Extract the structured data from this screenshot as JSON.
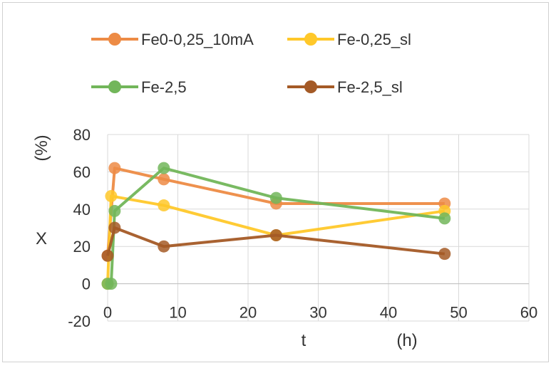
{
  "chart_data": {
    "type": "line",
    "xlabel": "t",
    "xunit": "(h)",
    "ylabel": "X",
    "yunit": "(%)",
    "xlim": [
      0,
      60
    ],
    "ylim": [
      -20,
      80
    ],
    "xticks": [
      0,
      10,
      20,
      30,
      40,
      50,
      60
    ],
    "yticks": [
      -20,
      0,
      20,
      40,
      60,
      80
    ],
    "grid": true,
    "legend_position": "top",
    "series": [
      {
        "name": "Fe0-0,25_10mA",
        "color": "#ED8B45",
        "x": [
          0,
          1,
          8,
          24,
          48
        ],
        "y": [
          15,
          62,
          56,
          43,
          43
        ]
      },
      {
        "name": "Fe-0,25_sl",
        "color": "#FFC82A",
        "x": [
          0,
          0.5,
          8,
          24,
          48
        ],
        "y": [
          0,
          47,
          42,
          26,
          39
        ]
      },
      {
        "name": "Fe-2,5",
        "color": "#72B65A",
        "x": [
          0,
          0.5,
          1,
          8,
          24,
          48
        ],
        "y": [
          0,
          0,
          39,
          62,
          46,
          35
        ]
      },
      {
        "name": "Fe-2,5_sl",
        "color": "#A45A26",
        "x": [
          0,
          1,
          8,
          24,
          48
        ],
        "y": [
          15,
          30,
          20,
          26,
          16
        ]
      }
    ]
  }
}
